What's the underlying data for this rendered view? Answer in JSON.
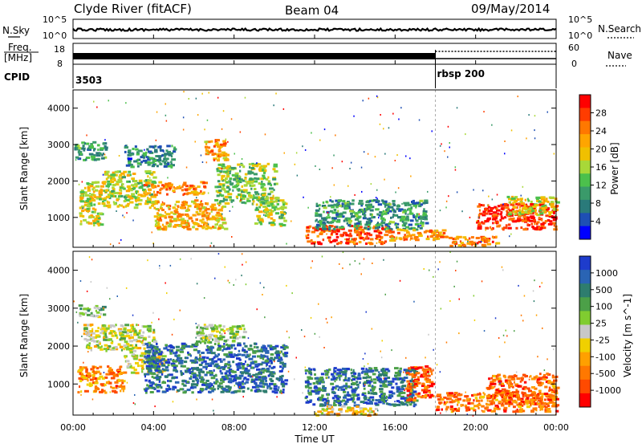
{
  "header": {
    "station": "Clyde River (fitACF)",
    "beam": "Beam 04",
    "date": "09/May/2014"
  },
  "noise_panel": {
    "left_label": "N.Sky",
    "right_label": "N.Search",
    "left_ticks": [
      "10^5",
      "10^0"
    ],
    "right_ticks": [
      "10^5",
      "10^0"
    ]
  },
  "freq_panel": {
    "left_label_line1": "Freq.",
    "left_label_line2": "[MHz]",
    "right_label": "Nave",
    "left_ticks": [
      "18",
      "8"
    ],
    "right_ticks": [
      "60",
      "0"
    ]
  },
  "cpid_panel": {
    "label": "CPID",
    "segments": [
      {
        "start_hour": 0,
        "text": "3503"
      },
      {
        "start_hour": 18,
        "text": "rbsp  200"
      }
    ]
  },
  "time_axis": {
    "label": "Time UT",
    "ticks": [
      "00:00",
      "04:00",
      "08:00",
      "12:00",
      "16:00",
      "20:00",
      "00:00"
    ]
  },
  "chart_data": [
    {
      "type": "heatmap",
      "name": "power",
      "ylabel": "Slant Range [km]",
      "x_range_hours": [
        0,
        24
      ],
      "ylim": [
        180,
        4500
      ],
      "y_ticks": [
        1000,
        2000,
        3000,
        4000
      ],
      "colorbar": {
        "label": "Power [dB]",
        "ticks": [
          "28",
          "24",
          "20",
          "16",
          "12",
          "8",
          "4"
        ],
        "colors": [
          "#ff0000",
          "#ff3c00",
          "#ff7800",
          "#ffa500",
          "#f0c000",
          "#a8d838",
          "#4cc04c",
          "#3a9a6a",
          "#2a7a7a",
          "#1e4fb4",
          "#0000ff"
        ]
      },
      "echo_regions": [
        {
          "t0": 0.0,
          "t1": 1.6,
          "r0": 2600,
          "r1": 3100,
          "level": 0.3
        },
        {
          "t0": 0.3,
          "t1": 1.5,
          "r0": 800,
          "r1": 2000,
          "level": 0.55
        },
        {
          "t0": 1.5,
          "t1": 4.0,
          "r0": 1300,
          "r1": 2300,
          "level": 0.5
        },
        {
          "t0": 2.5,
          "t1": 5.0,
          "r0": 2400,
          "r1": 3000,
          "level": 0.25
        },
        {
          "t0": 3.5,
          "t1": 6.5,
          "r0": 1650,
          "r1": 2000,
          "level": 0.75
        },
        {
          "t0": 4.0,
          "t1": 7.5,
          "r0": 700,
          "r1": 1500,
          "level": 0.65
        },
        {
          "t0": 6.5,
          "t1": 7.6,
          "r0": 2600,
          "r1": 3200,
          "level": 0.7
        },
        {
          "t0": 7.0,
          "t1": 10.0,
          "r0": 1400,
          "r1": 2500,
          "level": 0.45
        },
        {
          "t0": 9.0,
          "t1": 10.5,
          "r0": 800,
          "r1": 1600,
          "level": 0.5
        },
        {
          "t0": 11.5,
          "t1": 15.5,
          "r0": 300,
          "r1": 800,
          "level": 0.85
        },
        {
          "t0": 12.0,
          "t1": 17.5,
          "r0": 700,
          "r1": 1500,
          "level": 0.3
        },
        {
          "t0": 15.5,
          "t1": 18.5,
          "r0": 400,
          "r1": 700,
          "level": 0.7
        },
        {
          "t0": 18.5,
          "t1": 21.0,
          "r0": 250,
          "r1": 500,
          "level": 0.75
        },
        {
          "t0": 20.0,
          "t1": 24.0,
          "r0": 700,
          "r1": 1400,
          "level": 0.9
        },
        {
          "t0": 21.5,
          "t1": 24.0,
          "r0": 1100,
          "r1": 1600,
          "level": 0.55
        }
      ]
    },
    {
      "type": "heatmap",
      "name": "velocity",
      "ylabel": "Slant Range [km]",
      "x_range_hours": [
        0,
        24
      ],
      "ylim": [
        180,
        4500
      ],
      "y_ticks": [
        1000,
        2000,
        3000,
        4000
      ],
      "colorbar": {
        "label": "Velocity [m s^-1]",
        "ticks": [
          "1000",
          "500",
          "100",
          "25",
          "-25",
          "-100",
          "-500",
          "-1000"
        ],
        "colors": [
          "#1e3ccc",
          "#2a64b4",
          "#2e7d6e",
          "#4ca048",
          "#80cc30",
          "#c8c8c8",
          "#f0d000",
          "#ffa000",
          "#ff7800",
          "#ff4a00",
          "#ff0000"
        ]
      },
      "echo_regions": [
        {
          "t0": 0.2,
          "t1": 1.5,
          "r0": 2800,
          "r1": 3100,
          "level": 0.6
        },
        {
          "t0": 0.5,
          "t1": 4.0,
          "r0": 1900,
          "r1": 2600,
          "level": 0.5
        },
        {
          "t0": 0.2,
          "t1": 2.5,
          "r0": 800,
          "r1": 1500,
          "level": 0.25
        },
        {
          "t0": 2.5,
          "t1": 4.5,
          "r0": 1300,
          "r1": 1900,
          "level": 0.45
        },
        {
          "t0": 3.5,
          "t1": 10.5,
          "r0": 800,
          "r1": 2100,
          "level": 0.82
        },
        {
          "t0": 6.0,
          "t1": 8.5,
          "r0": 2100,
          "r1": 2600,
          "level": 0.55
        },
        {
          "t0": 11.5,
          "t1": 17.0,
          "r0": 450,
          "r1": 1450,
          "level": 0.82
        },
        {
          "t0": 12.0,
          "t1": 15.0,
          "r0": 200,
          "r1": 450,
          "level": 0.4
        },
        {
          "t0": 16.5,
          "t1": 17.8,
          "r0": 600,
          "r1": 1500,
          "level": 0.15
        },
        {
          "t0": 18.0,
          "t1": 24.0,
          "r0": 300,
          "r1": 800,
          "level": 0.22
        },
        {
          "t0": 20.5,
          "t1": 24.0,
          "r0": 500,
          "r1": 1300,
          "level": 0.2
        }
      ]
    }
  ]
}
